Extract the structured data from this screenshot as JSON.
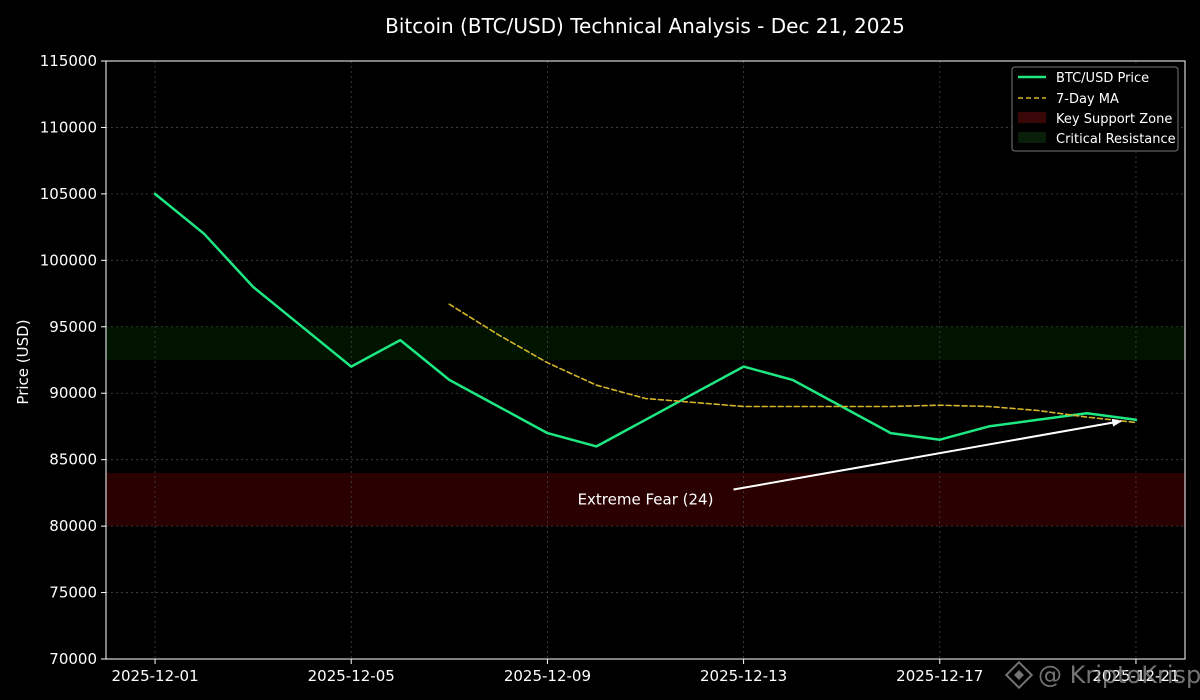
{
  "chart_data": {
    "type": "line",
    "title": "Bitcoin (BTC/USD) Technical Analysis - Dec 21, 2025",
    "ylabel": "Price (USD)",
    "xlabel": "",
    "ylim": [
      70000,
      115000
    ],
    "xlim": [
      "2025-11-30",
      "2025-12-22"
    ],
    "grid": true,
    "legend_position": "top-right",
    "x_ticks": [
      "2025-12-01",
      "2025-12-05",
      "2025-12-09",
      "2025-12-13",
      "2025-12-17",
      "2025-12-21"
    ],
    "y_ticks": [
      70000,
      75000,
      80000,
      85000,
      90000,
      95000,
      100000,
      105000,
      110000,
      115000
    ],
    "series": [
      {
        "name": "BTC/USD Price",
        "style": "solid",
        "color": "#1de882",
        "points": [
          [
            "2025-12-01",
            105000
          ],
          [
            "2025-12-02",
            102000
          ],
          [
            "2025-12-03",
            98000
          ],
          [
            "2025-12-04",
            95000
          ],
          [
            "2025-12-05",
            92000
          ],
          [
            "2025-12-06",
            94000
          ],
          [
            "2025-12-07",
            91000
          ],
          [
            "2025-12-08",
            89000
          ],
          [
            "2025-12-09",
            87000
          ],
          [
            "2025-12-10",
            86000
          ],
          [
            "2025-12-11",
            88000
          ],
          [
            "2025-12-12",
            90000
          ],
          [
            "2025-12-13",
            92000
          ],
          [
            "2025-12-14",
            91000
          ],
          [
            "2025-12-15",
            89000
          ],
          [
            "2025-12-16",
            87000
          ],
          [
            "2025-12-17",
            86500
          ],
          [
            "2025-12-18",
            87500
          ],
          [
            "2025-12-19",
            88000
          ],
          [
            "2025-12-20",
            88500
          ],
          [
            "2025-12-21",
            88000
          ]
        ]
      },
      {
        "name": "7-Day MA",
        "style": "dashed",
        "color": "#d4b52c",
        "points": [
          [
            "2025-12-07",
            96700
          ],
          [
            "2025-12-08",
            94400
          ],
          [
            "2025-12-09",
            92300
          ],
          [
            "2025-12-10",
            90600
          ],
          [
            "2025-12-11",
            89600
          ],
          [
            "2025-12-12",
            89300
          ],
          [
            "2025-12-13",
            89000
          ],
          [
            "2025-12-14",
            89000
          ],
          [
            "2025-12-15",
            89000
          ],
          [
            "2025-12-16",
            89000
          ],
          [
            "2025-12-17",
            89100
          ],
          [
            "2025-12-18",
            89000
          ],
          [
            "2025-12-19",
            88700
          ],
          [
            "2025-12-20",
            88200
          ],
          [
            "2025-12-21",
            87800
          ]
        ]
      }
    ],
    "bands": [
      {
        "name": "Key Support Zone",
        "range": [
          80000,
          84000
        ],
        "color": "#2a0000"
      },
      {
        "name": "Critical Resistance",
        "range": [
          92500,
          95000
        ],
        "color": "#001400"
      }
    ],
    "annotations": [
      {
        "text": "Extreme Fear (24)",
        "text_at": [
          "2025-12-11",
          82000
        ],
        "arrow_to": [
          "2025-12-20.7",
          87900
        ]
      }
    ],
    "watermark": "@ KriptoKrisp"
  }
}
